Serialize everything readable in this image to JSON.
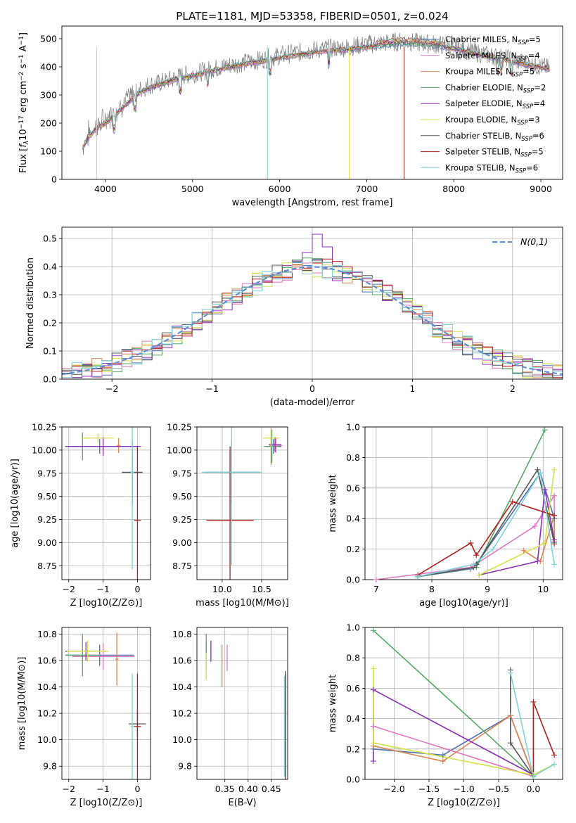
{
  "figure_title": "PLATE=1181, MJD=53358, FIBERID=0501, z=0.024",
  "colors": {
    "Chabrier MILES": "#4c72b0",
    "Salpeter MILES": "#e377c2",
    "Kroupa MILES": "#dd8452",
    "Chabrier ELODIE": "#55a868",
    "Salpeter ELODIE": "#8b2fb8",
    "Kroupa ELODIE": "#d4e14a",
    "Chabrier STELIB": "#555555",
    "Salpeter STELIB": "#b21e1e",
    "Kroupa STELIB": "#7fd3d8",
    "data": "#808080",
    "gaussian": "#5b8fd6"
  },
  "chart_data": [
    {
      "id": "spectrum",
      "type": "line",
      "title": "PLATE=1181, MJD=53358, FIBERID=0501, z=0.024",
      "xlabel": "wavelength [Angstrom, rest frame]",
      "ylabel": "Flux [f_λ10^-17 erg cm^-2 s^-1 A^-1]",
      "xlim": [
        3500,
        9250
      ],
      "ylim": [
        0,
        545
      ],
      "xticks": [
        4000,
        5000,
        6000,
        7000,
        8000,
        9000
      ],
      "yticks": [
        0,
        100,
        200,
        300,
        400,
        500
      ],
      "legend": [
        {
          "model": "Chabrier MILES",
          "label": "Chabrier MILES, N",
          "n": "=5"
        },
        {
          "model": "Salpeter MILES",
          "label": "Salpeter MILES, N",
          "n": "=4"
        },
        {
          "model": "Kroupa MILES",
          "label": "Kroupa MILES, N",
          "n": "=5"
        },
        {
          "model": "Chabrier ELODIE",
          "label": "Chabrier ELODIE, N",
          "n": "=2"
        },
        {
          "model": "Salpeter ELODIE",
          "label": "Salpeter ELODIE, N",
          "n": "=4"
        },
        {
          "model": "Kroupa ELODIE",
          "label": "Kroupa ELODIE, N",
          "n": "=3"
        },
        {
          "model": "Chabrier STELIB",
          "label": "Chabrier STELIB, N",
          "n": "=6"
        },
        {
          "model": "Salpeter STELIB",
          "label": "Salpeter STELIB, N",
          "n": "=5"
        },
        {
          "model": "Kroupa STELIB",
          "label": "Kroupa STELIB, N",
          "n": "=6"
        }
      ],
      "legend_sub": "SSP",
      "legend_position": "right",
      "data_curve": {
        "x": [
          3740,
          3800,
          3850,
          3900,
          3950,
          4000,
          4100,
          4200,
          4300,
          4400,
          4500,
          4600,
          4700,
          4800,
          4900,
          5000,
          5200,
          5400,
          5600,
          5800,
          6000,
          6200,
          6400,
          6600,
          6800,
          7000,
          7200,
          7400,
          7600,
          7800,
          8000,
          8200,
          8400,
          8600,
          8800,
          9000,
          9100
        ],
        "y": [
          120,
          160,
          175,
          190,
          200,
          215,
          240,
          270,
          295,
          320,
          335,
          340,
          350,
          360,
          370,
          375,
          390,
          405,
          415,
          425,
          440,
          450,
          460,
          465,
          470,
          480,
          485,
          490,
          485,
          480,
          470,
          455,
          440,
          430,
          415,
          400,
          395
        ]
      },
      "model_curve": {
        "x": [
          3740,
          3800,
          3900,
          4000,
          4100,
          4200,
          4300,
          4400,
          4500,
          4600,
          4700,
          4800,
          4900,
          5000,
          5200,
          5400,
          5600,
          5800,
          6000,
          6200,
          6400,
          6600,
          6800,
          7000,
          7200,
          7400,
          7600,
          7800,
          8000,
          8200,
          8400,
          8600,
          8800,
          9000,
          9100
        ],
        "y": [
          110,
          150,
          180,
          200,
          225,
          255,
          285,
          310,
          325,
          335,
          345,
          355,
          362,
          368,
          385,
          398,
          410,
          420,
          432,
          442,
          452,
          458,
          462,
          470,
          478,
          485,
          482,
          476,
          465,
          450,
          437,
          425,
          410,
          398,
          392
        ]
      },
      "dips": [
        {
          "model": "Kroupa ELODIE",
          "x": 3900
        },
        {
          "model": "Kroupa STELIB",
          "x": 5860
        },
        {
          "model": "Kroupa ELODIE",
          "x": 6800
        },
        {
          "model": "Salpeter STELIB",
          "x": 7430
        }
      ]
    },
    {
      "id": "residuals",
      "type": "histogram",
      "xlabel": "(data-model)/error",
      "ylabel": "Normed distribution",
      "xlim": [
        -2.5,
        2.5
      ],
      "ylim": [
        0,
        0.54
      ],
      "xticks": [
        -2,
        -1,
        0,
        1,
        2
      ],
      "yticks": [
        0.0,
        0.1,
        0.2,
        0.3,
        0.4,
        0.5
      ],
      "legend_label": "N(0,1)",
      "legend_position": "top-right",
      "bin_width": 0.1,
      "base_shape": "gaussian",
      "outline_model": "Salpeter ELODIE",
      "outline_bins": [
        {
          "x": -0.1,
          "y": 0.42
        },
        {
          "x": 0.0,
          "y": 0.45
        },
        {
          "x": 0.1,
          "y": 0.515
        },
        {
          "x": 0.2,
          "y": 0.47
        },
        {
          "x": 0.3,
          "y": 0.35
        }
      ]
    },
    {
      "id": "age-vs-Z",
      "type": "errorbar",
      "xlabel": "Z [log10(Z/Z⊙)]",
      "ylabel": "age  [log10(age/yr)]",
      "xlim": [
        -2.2,
        0.38
      ],
      "ylim": [
        8.6,
        10.25
      ],
      "xticks": [
        -2,
        -1,
        0
      ],
      "yticks": [
        8.75,
        9.0,
        9.25,
        9.5,
        9.75,
        10.0,
        10.25
      ],
      "points": [
        {
          "model": "Chabrier MILES",
          "x": -1.1,
          "y": 10.04,
          "xe": 1.0,
          "ye": 0.08
        },
        {
          "model": "Salpeter MILES",
          "x": -1.0,
          "y": 10.04,
          "xe": 1.0,
          "ye": 0.08
        },
        {
          "model": "Kroupa MILES",
          "x": -0.55,
          "y": 10.05,
          "xe": 0.05,
          "ye": 0.08
        },
        {
          "model": "Chabrier ELODIE",
          "x": -1.6,
          "y": 10.04,
          "xe": 0.5,
          "ye": 0.15
        },
        {
          "model": "Salpeter ELODIE",
          "x": -1.0,
          "y": 10.04,
          "xe": 1.1,
          "ye": 0.1
        },
        {
          "model": "Kroupa ELODIE",
          "x": -1.15,
          "y": 10.13,
          "xe": 0.45,
          "ye": 0.05
        },
        {
          "model": "Chabrier STELIB",
          "x": -0.15,
          "y": 9.76,
          "xe": 0.3,
          "ye": 0.35
        },
        {
          "model": "Salpeter STELIB",
          "x": 0.0,
          "y": 9.24,
          "xe": 0.1,
          "ye": 0.8
        },
        {
          "model": "Kroupa STELIB",
          "x": -0.15,
          "y": 9.76,
          "xe": 0.05,
          "ye": 1.05
        }
      ]
    },
    {
      "id": "age-vs-mass",
      "type": "errorbar",
      "xlabel": "mass [log10(M/M⊙)]",
      "ylabel": "",
      "xlim": [
        9.68,
        10.83
      ],
      "ylim": [
        8.6,
        10.25
      ],
      "xticks": [
        10.0,
        10.5
      ],
      "yticks": [
        8.75,
        9.0,
        9.25,
        9.5,
        9.75,
        10.0,
        10.25
      ],
      "points": [
        {
          "model": "Chabrier MILES",
          "x": 10.65,
          "y": 10.04,
          "xe": 0.1,
          "ye": 0.08
        },
        {
          "model": "Salpeter MILES",
          "x": 10.68,
          "y": 10.05,
          "xe": 0.08,
          "ye": 0.08
        },
        {
          "model": "Kroupa MILES",
          "x": 10.62,
          "y": 10.04,
          "xe": 0.05,
          "ye": 0.2
        },
        {
          "model": "Chabrier ELODIE",
          "x": 10.63,
          "y": 10.04,
          "xe": 0.1,
          "ye": 0.18
        },
        {
          "model": "Salpeter ELODIE",
          "x": 10.67,
          "y": 10.06,
          "xe": 0.08,
          "ye": 0.08
        },
        {
          "model": "Kroupa ELODIE",
          "x": 10.62,
          "y": 10.13,
          "xe": 0.1,
          "ye": 0.1
        },
        {
          "model": "Chabrier STELIB",
          "x": 10.12,
          "y": 9.76,
          "xe": 0.35,
          "ye": 0.35
        },
        {
          "model": "Salpeter STELIB",
          "x": 10.1,
          "y": 9.24,
          "xe": 0.3,
          "ye": 0.8
        },
        {
          "model": "Kroupa STELIB",
          "x": 10.12,
          "y": 9.76,
          "xe": 0.38,
          "ye": 1.0
        }
      ]
    },
    {
      "id": "mass-weight-vs-age",
      "type": "line",
      "xlabel": "age  [log10(age/yr)]",
      "ylabel": "mass weight",
      "xlim": [
        6.8,
        10.35
      ],
      "ylim": [
        0,
        1.0
      ],
      "xticks": [
        7,
        8,
        9,
        10
      ],
      "yticks": [
        0.0,
        0.2,
        0.4,
        0.6,
        0.8,
        1.0
      ],
      "series": [
        {
          "model": "Chabrier MILES",
          "x": [
            7.75,
            8.7,
            8.8,
            9.95,
            10.2
          ],
          "y": [
            0.02,
            0.07,
            0.1,
            0.7,
            0.4
          ]
        },
        {
          "model": "Salpeter MILES",
          "x": [
            7.0,
            8.7,
            9.85,
            10.2,
            10.2
          ],
          "y": [
            0.0,
            0.08,
            0.35,
            0.55,
            0.25
          ]
        },
        {
          "model": "Kroupa MILES",
          "x": [
            9.65,
            9.95,
            10.2,
            10.2
          ],
          "y": [
            0.19,
            0.12,
            0.42,
            0.23
          ]
        },
        {
          "model": "Chabrier ELODIE",
          "x": [
            7.75,
            8.8,
            10.03
          ],
          "y": [
            0.02,
            0.08,
            0.98
          ]
        },
        {
          "model": "Salpeter ELODIE",
          "x": [
            8.85,
            9.9,
            10.03,
            10.2
          ],
          "y": [
            0.03,
            0.12,
            0.59,
            0.26
          ]
        },
        {
          "model": "Kroupa ELODIE",
          "x": [
            8.85,
            10.03,
            10.2
          ],
          "y": [
            0.03,
            0.24,
            0.72
          ]
        },
        {
          "model": "Chabrier STELIB",
          "x": [
            7.75,
            8.75,
            8.8,
            9.9,
            10.2
          ],
          "y": [
            0.02,
            0.08,
            0.1,
            0.72,
            0.24
          ]
        },
        {
          "model": "Salpeter STELIB",
          "x": [
            7.75,
            8.7,
            8.8,
            9.45,
            10.2
          ],
          "y": [
            0.03,
            0.24,
            0.16,
            0.51,
            0.42
          ]
        },
        {
          "model": "Kroupa STELIB",
          "x": [
            7.75,
            8.75,
            9.1,
            9.95,
            10.2
          ],
          "y": [
            0.02,
            0.1,
            0.2,
            0.7,
            0.1
          ]
        }
      ]
    },
    {
      "id": "mass-vs-Z",
      "type": "errorbar",
      "xlabel": "Z [log10(Z/Z⊙)]",
      "ylabel": "mass [log10(M/M⊙)]",
      "xlim": [
        -2.2,
        0.38
      ],
      "ylim": [
        9.7,
        10.85
      ],
      "xticks": [
        -2,
        -1,
        0
      ],
      "yticks": [
        9.8,
        10.0,
        10.2,
        10.4,
        10.6,
        10.8
      ],
      "points": [
        {
          "model": "Chabrier MILES",
          "x": -1.1,
          "y": 10.64,
          "xe": 1.0,
          "ye": 0.08
        },
        {
          "model": "Salpeter MILES",
          "x": -1.0,
          "y": 10.63,
          "xe": 0.9,
          "ye": 0.1
        },
        {
          "model": "Kroupa MILES",
          "x": -0.6,
          "y": 10.61,
          "xe": 0.05,
          "ye": 0.2
        },
        {
          "model": "Chabrier ELODIE",
          "x": -1.6,
          "y": 10.64,
          "xe": 0.5,
          "ye": 0.16
        },
        {
          "model": "Salpeter ELODIE",
          "x": -1.5,
          "y": 10.67,
          "xe": 0.6,
          "ye": 0.07
        },
        {
          "model": "Kroupa ELODIE",
          "x": -1.45,
          "y": 10.67,
          "xe": 0.6,
          "ye": 0.08
        },
        {
          "model": "Chabrier STELIB",
          "x": 0.0,
          "y": 10.12,
          "xe": 0.25,
          "ye": 0.1
        },
        {
          "model": "Salpeter STELIB",
          "x": 0.0,
          "y": 10.1,
          "xe": 0.1,
          "ye": 0.4
        },
        {
          "model": "Kroupa STELIB",
          "x": -0.15,
          "y": 10.1,
          "xe": 0.05,
          "ye": 0.4
        }
      ]
    },
    {
      "id": "mass-vs-ebv",
      "type": "errorbar",
      "xlabel": "E(B-V)",
      "ylabel": "",
      "xlim": [
        0.29,
        0.485
      ],
      "ylim": [
        9.7,
        10.85
      ],
      "xticks": [
        0.35,
        0.4,
        0.45
      ],
      "yticks": [
        9.8,
        10.0,
        10.2,
        10.4,
        10.6,
        10.8
      ],
      "points": [
        {
          "model": "Chabrier MILES",
          "x": 0.31,
          "y": 10.64,
          "xe": 0.0,
          "ye": 0.1
        },
        {
          "model": "Salpeter MILES",
          "x": 0.355,
          "y": 10.62,
          "xe": 0.0,
          "ye": 0.1
        },
        {
          "model": "Kroupa MILES",
          "x": 0.344,
          "y": 10.56,
          "xe": 0.0,
          "ye": 0.16
        },
        {
          "model": "Chabrier ELODIE",
          "x": 0.31,
          "y": 10.68,
          "xe": 0.0,
          "ye": 0.12
        },
        {
          "model": "Salpeter ELODIE",
          "x": 0.32,
          "y": 10.67,
          "xe": 0.0,
          "ye": 0.08
        },
        {
          "model": "Kroupa ELODIE",
          "x": 0.31,
          "y": 10.56,
          "xe": 0.0,
          "ye": 0.1
        },
        {
          "model": "Chabrier STELIB",
          "x": 0.48,
          "y": 10.12,
          "xe": 0.0,
          "ye": 0.4
        },
        {
          "model": "Salpeter STELIB",
          "x": 0.48,
          "y": 10.1,
          "xe": 0.0,
          "ye": 0.4
        },
        {
          "model": "Kroupa STELIB",
          "x": 0.478,
          "y": 10.1,
          "xe": 0.0,
          "ye": 0.38
        }
      ]
    },
    {
      "id": "mass-weight-vs-Z",
      "type": "line",
      "xlabel": "Z [log10(Z/Z⊙)]",
      "ylabel": "mass weight",
      "xlim": [
        -2.42,
        0.42
      ],
      "ylim": [
        0,
        1.0
      ],
      "xticks": [
        -2.0,
        -1.5,
        -1.0,
        -0.5,
        0.0
      ],
      "series": [
        {
          "model": "Chabrier MILES",
          "x": [
            -2.3,
            -1.3,
            -0.33,
            0.0
          ],
          "y": [
            0.2,
            0.16,
            0.42,
            0.02
          ]
        },
        {
          "model": "Salpeter MILES",
          "x": [
            -2.3,
            0.0
          ],
          "y": [
            0.35,
            0.02
          ]
        },
        {
          "model": "Kroupa MILES",
          "x": [
            -2.3,
            -1.3,
            -0.33,
            0.0
          ],
          "y": [
            0.22,
            0.12,
            0.42,
            0.02
          ]
        },
        {
          "model": "Chabrier ELODIE",
          "x": [
            -2.3,
            0.0
          ],
          "y": [
            0.98,
            0.02
          ]
        },
        {
          "model": "Salpeter ELODIE",
          "x": [
            -2.3,
            -2.3,
            0.0
          ],
          "y": [
            0.12,
            0.59,
            0.03
          ]
        },
        {
          "model": "Kroupa ELODIE",
          "x": [
            -2.3,
            -2.3,
            0.0,
            0.3
          ],
          "y": [
            0.73,
            0.24,
            0.03,
            0.1
          ]
        },
        {
          "model": "Chabrier STELIB",
          "x": [
            -0.33,
            -0.33,
            0.0
          ],
          "y": [
            0.72,
            0.24,
            0.02
          ]
        },
        {
          "model": "Salpeter STELIB",
          "x": [
            0.0,
            0.0,
            0.3
          ],
          "y": [
            0.02,
            0.51,
            0.16
          ]
        },
        {
          "model": "Kroupa STELIB",
          "x": [
            -0.33,
            0.0,
            0.3
          ],
          "y": [
            0.7,
            0.02,
            0.1
          ]
        }
      ]
    }
  ]
}
